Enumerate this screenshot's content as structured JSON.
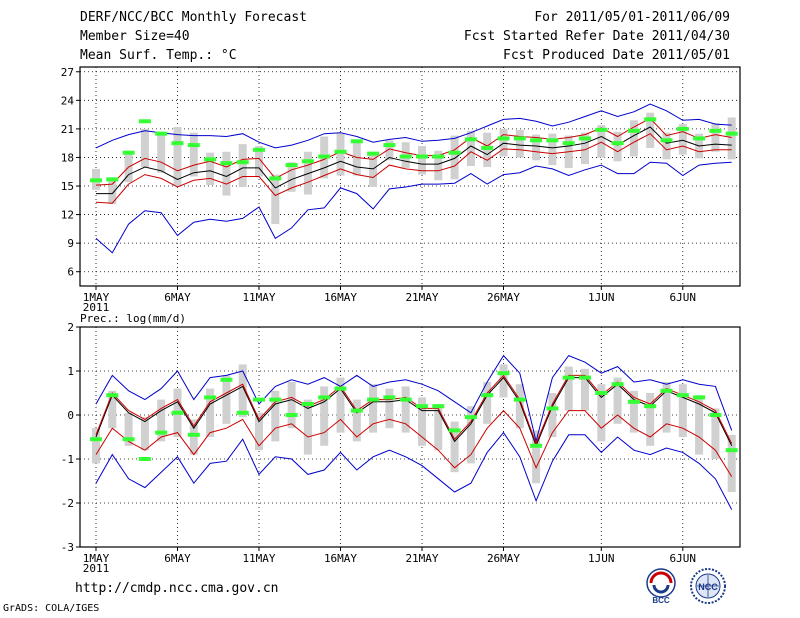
{
  "header": {
    "title": "DERF/NCC/BCC Monthly Forecast",
    "member_size": "Member Size=40",
    "variable": "Mean Surf. Temp.: °C",
    "period": "For 2011/05/01-2011/06/09",
    "refer_date": "Fcst Started Refer Date 2011/04/30",
    "produced_date": "Fcst Produced Date 2011/05/01"
  },
  "footer": {
    "url": "http://cmdp.ncc.cma.gov.cn",
    "grads_credit": "GrADS: COLA/IGES",
    "logo_left_text": "BCC",
    "logo_right_text": "NCC"
  },
  "colors": {
    "max_min": "#0000cc",
    "ensemble_mean": "#000000",
    "percentile": "#cc0000",
    "obs_dash": "#33ff33",
    "box": "#d0d0d0"
  },
  "chart_data": [
    {
      "type": "line",
      "title": "Mean Surf. Temp.: °C",
      "x_start_date": "2011-05-01",
      "x_tick_labels": [
        "1MAY",
        "6MAY",
        "11MAY",
        "16MAY",
        "21MAY",
        "26MAY",
        "1JUN",
        "6JUN"
      ],
      "x_tick_days": [
        1,
        6,
        11,
        16,
        21,
        26,
        32,
        37
      ],
      "x_year_label": "2011",
      "xlim": [
        0,
        40
      ],
      "ylim": [
        4.5,
        27.5
      ],
      "yticks": [
        6,
        9,
        12,
        15,
        18,
        21,
        24,
        27
      ],
      "grid": true,
      "series": [
        {
          "name": "max",
          "style": "blue",
          "values": [
            19.0,
            19.8,
            20.4,
            20.8,
            20.6,
            20.4,
            20.3,
            20.3,
            20.2,
            20.5,
            19.6,
            19.0,
            19.3,
            19.8,
            20.5,
            20.6,
            20.2,
            19.6,
            19.9,
            20.1,
            19.7,
            19.8,
            20.0,
            20.6,
            21.3,
            22.0,
            22.1,
            21.8,
            21.3,
            21.7,
            22.3,
            22.9,
            22.3,
            22.8,
            23.6,
            22.9,
            21.9,
            22.0,
            21.5,
            21.4
          ]
        },
        {
          "name": "p90",
          "style": "red",
          "values": [
            15.1,
            15.2,
            17.0,
            17.9,
            17.5,
            16.6,
            17.2,
            17.6,
            17.0,
            17.8,
            17.9,
            15.8,
            16.7,
            17.2,
            17.8,
            18.6,
            18.0,
            17.8,
            18.9,
            18.5,
            18.2,
            18.2,
            18.8,
            20.1,
            19.2,
            20.4,
            20.2,
            20.1,
            19.9,
            20.1,
            20.4,
            21.1,
            20.2,
            21.2,
            22.1,
            20.3,
            20.7,
            20.0,
            20.4,
            20.1
          ]
        },
        {
          "name": "mean",
          "style": "black",
          "values": [
            14.2,
            14.2,
            16.2,
            17.0,
            16.6,
            15.7,
            16.4,
            16.6,
            16.0,
            16.9,
            16.9,
            14.8,
            15.7,
            16.3,
            16.9,
            17.6,
            17.0,
            16.8,
            18.0,
            17.6,
            17.3,
            17.3,
            17.9,
            19.2,
            18.3,
            19.5,
            19.3,
            19.2,
            19.0,
            19.2,
            19.5,
            20.2,
            19.3,
            20.3,
            21.2,
            19.5,
            19.8,
            19.2,
            19.4,
            19.3
          ]
        },
        {
          "name": "p10",
          "style": "red",
          "values": [
            13.3,
            13.2,
            15.2,
            16.2,
            15.8,
            14.9,
            15.6,
            15.8,
            15.2,
            16.0,
            16.0,
            14.0,
            14.8,
            15.4,
            16.1,
            16.8,
            16.2,
            15.9,
            17.2,
            16.8,
            16.6,
            16.6,
            17.1,
            18.6,
            17.7,
            18.9,
            18.8,
            18.6,
            18.4,
            18.6,
            18.8,
            19.6,
            18.6,
            19.6,
            20.5,
            18.8,
            19.2,
            18.6,
            18.8,
            18.8
          ]
        },
        {
          "name": "min",
          "style": "blue",
          "values": [
            9.5,
            8.0,
            11.0,
            12.4,
            12.2,
            9.8,
            11.2,
            11.5,
            11.3,
            11.6,
            12.8,
            9.5,
            10.6,
            12.5,
            12.7,
            14.8,
            14.2,
            12.6,
            14.7,
            14.9,
            15.2,
            15.2,
            15.3,
            16.3,
            15.2,
            16.2,
            16.4,
            17.1,
            16.8,
            16.1,
            16.7,
            17.2,
            16.3,
            16.3,
            17.5,
            17.4,
            16.1,
            17.2,
            17.4,
            17.5
          ]
        }
      ],
      "obs_dashes": [
        15.6,
        15.7,
        18.5,
        21.8,
        20.5,
        19.5,
        19.3,
        17.8,
        17.4,
        17.5,
        18.8,
        15.8,
        17.2,
        17.6,
        18.1,
        18.6,
        19.7,
        18.4,
        19.3,
        18.1,
        18.1,
        18.1,
        18.5,
        19.9,
        19.0,
        20.0,
        20.0,
        19.8,
        19.8,
        19.5,
        20.0,
        20.9,
        19.5,
        20.8,
        22.0,
        19.8,
        21.0,
        20.0,
        20.8,
        20.5
      ],
      "boxes": [
        [
          14.6,
          16.8
        ],
        [
          13.1,
          15.6
        ],
        [
          15.4,
          18.6
        ],
        [
          17.0,
          21.0
        ],
        [
          16.4,
          20.6
        ],
        [
          15.0,
          21.2
        ],
        [
          16.0,
          20.6
        ],
        [
          15.1,
          18.5
        ],
        [
          14.0,
          18.6
        ],
        [
          14.9,
          19.4
        ],
        [
          16.0,
          19.2
        ],
        [
          11.0,
          16.2
        ],
        [
          14.4,
          17.5
        ],
        [
          14.1,
          18.6
        ],
        [
          15.8,
          20.2
        ],
        [
          16.1,
          20.6
        ],
        [
          16.1,
          19.6
        ],
        [
          14.9,
          18.4
        ],
        [
          17.7,
          19.8
        ],
        [
          16.9,
          19.6
        ],
        [
          16.2,
          19.2
        ],
        [
          15.6,
          18.7
        ],
        [
          15.7,
          20.3
        ],
        [
          17.1,
          20.8
        ],
        [
          17.0,
          20.6
        ],
        [
          18.1,
          21.0
        ],
        [
          18.0,
          20.9
        ],
        [
          17.7,
          20.4
        ],
        [
          17.2,
          20.5
        ],
        [
          16.9,
          20.3
        ],
        [
          17.3,
          20.6
        ],
        [
          18.0,
          21.4
        ],
        [
          17.6,
          20.7
        ],
        [
          18.1,
          21.9
        ],
        [
          19.0,
          22.7
        ],
        [
          17.8,
          20.6
        ],
        [
          18.3,
          21.5
        ],
        [
          17.9,
          20.5
        ],
        [
          18.6,
          21.6
        ],
        [
          17.8,
          22.2
        ]
      ]
    },
    {
      "type": "line",
      "title": "Prec.: log(mm/d)",
      "x_tick_labels": [
        "1MAY",
        "6MAY",
        "11MAY",
        "16MAY",
        "21MAY",
        "26MAY",
        "1JUN",
        "6JUN"
      ],
      "x_tick_days": [
        1,
        6,
        11,
        16,
        21,
        26,
        32,
        37
      ],
      "x_year_label": "2011",
      "xlim": [
        0,
        40
      ],
      "ylim": [
        -3,
        2
      ],
      "yticks": [
        -3,
        -2,
        -1,
        0,
        1,
        2
      ],
      "grid": true,
      "series": [
        {
          "name": "max",
          "style": "blue",
          "values": [
            0.25,
            0.9,
            0.55,
            0.35,
            0.6,
            1.0,
            0.35,
            0.85,
            0.9,
            1.0,
            0.25,
            0.65,
            0.8,
            0.7,
            0.85,
            0.65,
            0.9,
            0.65,
            0.75,
            0.8,
            0.7,
            0.55,
            0.3,
            0.05,
            0.75,
            1.35,
            0.95,
            -0.6,
            0.85,
            1.35,
            1.2,
            0.95,
            1.1,
            0.75,
            0.8,
            0.7,
            0.8,
            0.7,
            0.65,
            -0.35
          ]
        },
        {
          "name": "mean",
          "style": "black",
          "values": [
            -0.5,
            0.45,
            0.05,
            -0.15,
            0.1,
            0.3,
            -0.3,
            0.25,
            0.45,
            0.65,
            -0.15,
            0.25,
            0.35,
            0.15,
            0.3,
            0.6,
            0.05,
            0.3,
            0.3,
            0.35,
            0.1,
            0.1,
            -0.6,
            -0.2,
            0.45,
            0.85,
            0.3,
            -0.7,
            0.2,
            0.85,
            0.85,
            0.4,
            0.7,
            0.35,
            0.2,
            0.55,
            0.4,
            0.25,
            0.05,
            -0.7
          ]
        },
        {
          "name": "p90",
          "style": "red",
          "values": [
            -0.45,
            0.5,
            0.1,
            -0.1,
            0.15,
            0.35,
            -0.25,
            0.3,
            0.5,
            0.7,
            -0.1,
            0.3,
            0.4,
            0.2,
            0.35,
            0.65,
            0.1,
            0.35,
            0.35,
            0.4,
            0.15,
            0.15,
            -0.55,
            -0.15,
            0.5,
            0.9,
            0.35,
            -0.65,
            0.25,
            0.9,
            0.9,
            0.45,
            0.75,
            0.4,
            0.25,
            0.6,
            0.45,
            0.3,
            0.1,
            -0.65
          ]
        },
        {
          "name": "p10",
          "style": "red",
          "values": [
            -0.9,
            -0.3,
            -0.6,
            -0.8,
            -0.5,
            -0.4,
            -0.9,
            -0.4,
            -0.3,
            -0.1,
            -0.7,
            -0.3,
            -0.2,
            -0.5,
            -0.4,
            -0.1,
            -0.5,
            -0.2,
            -0.1,
            -0.2,
            -0.5,
            -0.8,
            -1.2,
            -0.9,
            -0.3,
            0.1,
            -0.3,
            -1.2,
            -0.4,
            0.1,
            0.1,
            -0.3,
            0.0,
            -0.3,
            -0.5,
            -0.2,
            -0.3,
            -0.5,
            -0.8,
            -1.4
          ]
        },
        {
          "name": "min",
          "style": "blue",
          "values": [
            -1.55,
            -0.9,
            -1.45,
            -1.65,
            -1.3,
            -0.95,
            -1.55,
            -1.1,
            -1.05,
            -0.55,
            -1.35,
            -0.95,
            -1.0,
            -1.35,
            -1.25,
            -0.85,
            -1.25,
            -0.95,
            -0.8,
            -0.95,
            -1.15,
            -1.45,
            -1.75,
            -1.55,
            -0.85,
            -0.4,
            -0.95,
            -1.95,
            -1.05,
            -0.45,
            -0.45,
            -0.85,
            -0.5,
            -0.8,
            -0.9,
            -0.75,
            -0.85,
            -1.1,
            -1.45,
            -2.15
          ]
        }
      ],
      "obs_dashes": [
        -0.55,
        0.45,
        -0.55,
        -1.0,
        -0.4,
        0.05,
        -0.45,
        0.4,
        0.8,
        0.05,
        0.35,
        0.35,
        0.0,
        0.25,
        0.4,
        0.6,
        0.1,
        0.35,
        0.4,
        0.35,
        0.2,
        0.2,
        -0.35,
        -0.05,
        0.45,
        0.95,
        0.35,
        -0.7,
        0.15,
        0.85,
        0.85,
        0.5,
        0.7,
        0.3,
        0.2,
        0.55,
        0.45,
        0.4,
        0.0,
        -0.8
      ],
      "boxes": [
        [
          -1.1,
          -0.3
        ],
        [
          -0.3,
          0.55
        ],
        [
          -0.7,
          0.05
        ],
        [
          -0.8,
          -0.05
        ],
        [
          -0.6,
          0.35
        ],
        [
          -0.5,
          0.6
        ],
        [
          -0.9,
          -0.1
        ],
        [
          -0.5,
          0.6
        ],
        [
          -0.2,
          0.9
        ],
        [
          -0.05,
          1.15
        ],
        [
          -0.8,
          0.05
        ],
        [
          -0.6,
          0.55
        ],
        [
          -0.3,
          0.75
        ],
        [
          -0.9,
          0.35
        ],
        [
          -0.7,
          0.65
        ],
        [
          -0.4,
          0.85
        ],
        [
          -0.6,
          0.35
        ],
        [
          -0.4,
          0.7
        ],
        [
          -0.3,
          0.6
        ],
        [
          -0.4,
          0.65
        ],
        [
          -0.7,
          0.4
        ],
        [
          -0.8,
          0.25
        ],
        [
          -1.3,
          -0.15
        ],
        [
          -1.1,
          0.2
        ],
        [
          -0.2,
          0.75
        ],
        [
          0.4,
          1.15
        ],
        [
          -0.3,
          0.7
        ],
        [
          -1.55,
          -0.35
        ],
        [
          -0.5,
          0.5
        ],
        [
          0.1,
          1.1
        ],
        [
          0.1,
          1.05
        ],
        [
          -0.6,
          0.7
        ],
        [
          -0.2,
          0.85
        ],
        [
          -0.4,
          0.55
        ],
        [
          -0.7,
          0.5
        ],
        [
          -0.4,
          0.75
        ],
        [
          -0.5,
          0.7
        ],
        [
          -0.9,
          0.45
        ],
        [
          -1.0,
          0.15
        ],
        [
          -1.75,
          -0.45
        ]
      ]
    }
  ]
}
